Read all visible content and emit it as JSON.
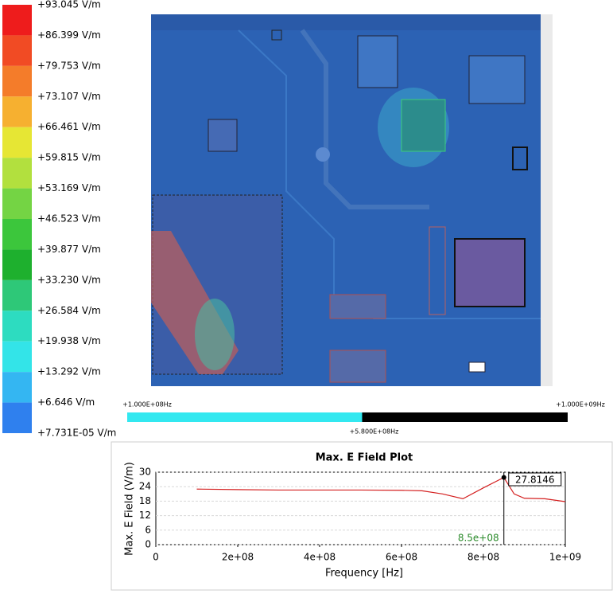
{
  "legend": {
    "labels": [
      "+93.045 V/m",
      "+86.399 V/m",
      "+79.753 V/m",
      "+73.107 V/m",
      "+66.461 V/m",
      "+59.815 V/m",
      "+53.169 V/m",
      "+46.523 V/m",
      "+39.877 V/m",
      "+33.230 V/m",
      "+26.584 V/m",
      "+19.938 V/m",
      "+13.292 V/m",
      "+6.646 V/m",
      "+7.731E-05 V/m"
    ],
    "colors": [
      "#ee1c1c",
      "#f14b24",
      "#f47c2a",
      "#f6b030",
      "#e6e634",
      "#b2e03e",
      "#74d444",
      "#3cc63c",
      "#1eb02e",
      "#2ec878",
      "#2ddcc0",
      "#33e4e8",
      "#34b6f2",
      "#2f80ee"
    ]
  },
  "frequency_slider": {
    "min": {
      "value": 100000000,
      "label": "+1.000E+08Hz"
    },
    "max": {
      "value": 1000000000,
      "label": "+1.000E+09Hz"
    },
    "current": {
      "value": 580000000,
      "label": "+5.800E+08Hz"
    }
  },
  "chart_data": {
    "type": "line",
    "title": "Max. E Field Plot",
    "x_label": "Frequency [Hz]",
    "y_label": "Max. E Field (V/m)",
    "x": [
      100000000,
      200000000,
      300000000,
      400000000,
      500000000,
      600000000,
      650000000,
      700000000,
      750000000,
      800000000,
      850000000,
      875000000,
      900000000,
      950000000,
      1000000000
    ],
    "values": [
      23,
      22.8,
      22.6,
      22.6,
      22.6,
      22.5,
      22.3,
      21,
      19,
      23.5,
      27.8146,
      21,
      19.2,
      19,
      17.8
    ],
    "color": "#d42020",
    "xlim": [
      0,
      1000000000
    ],
    "xticks": [
      0,
      {
        "value": 200000000,
        "label": "2e+08"
      },
      {
        "value": 400000000,
        "label": "4e+08"
      },
      {
        "value": 600000000,
        "label": "6e+08"
      },
      {
        "value": 800000000,
        "label": "8e+08"
      },
      {
        "value": 1000000000,
        "label": "1e+09"
      }
    ],
    "ylim": [
      0,
      30
    ],
    "yticks": [
      0,
      6,
      12,
      18,
      24,
      30
    ],
    "grid": true,
    "cursor": {
      "value": 850000000,
      "label": "8.5e+08"
    },
    "cursor_value": 27.8146
  }
}
